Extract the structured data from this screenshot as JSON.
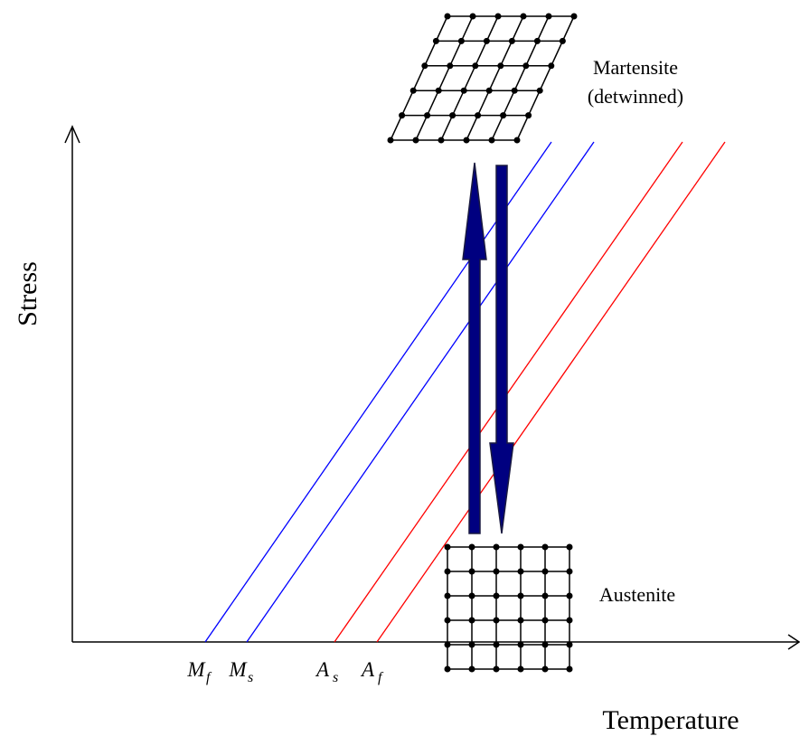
{
  "axes": {
    "y_label": "Stress",
    "x_label": "Temperature"
  },
  "lines": [
    {
      "symbol": "M",
      "subscript": "f"
    },
    {
      "symbol": "M",
      "subscript": "s"
    },
    {
      "symbol": "A",
      "subscript": "s"
    },
    {
      "symbol": "A",
      "subscript": "f"
    }
  ],
  "phases": {
    "martensite": {
      "name": "Martensite",
      "note": "(detwinned)"
    },
    "austenite": {
      "name": "Austenite"
    }
  }
}
